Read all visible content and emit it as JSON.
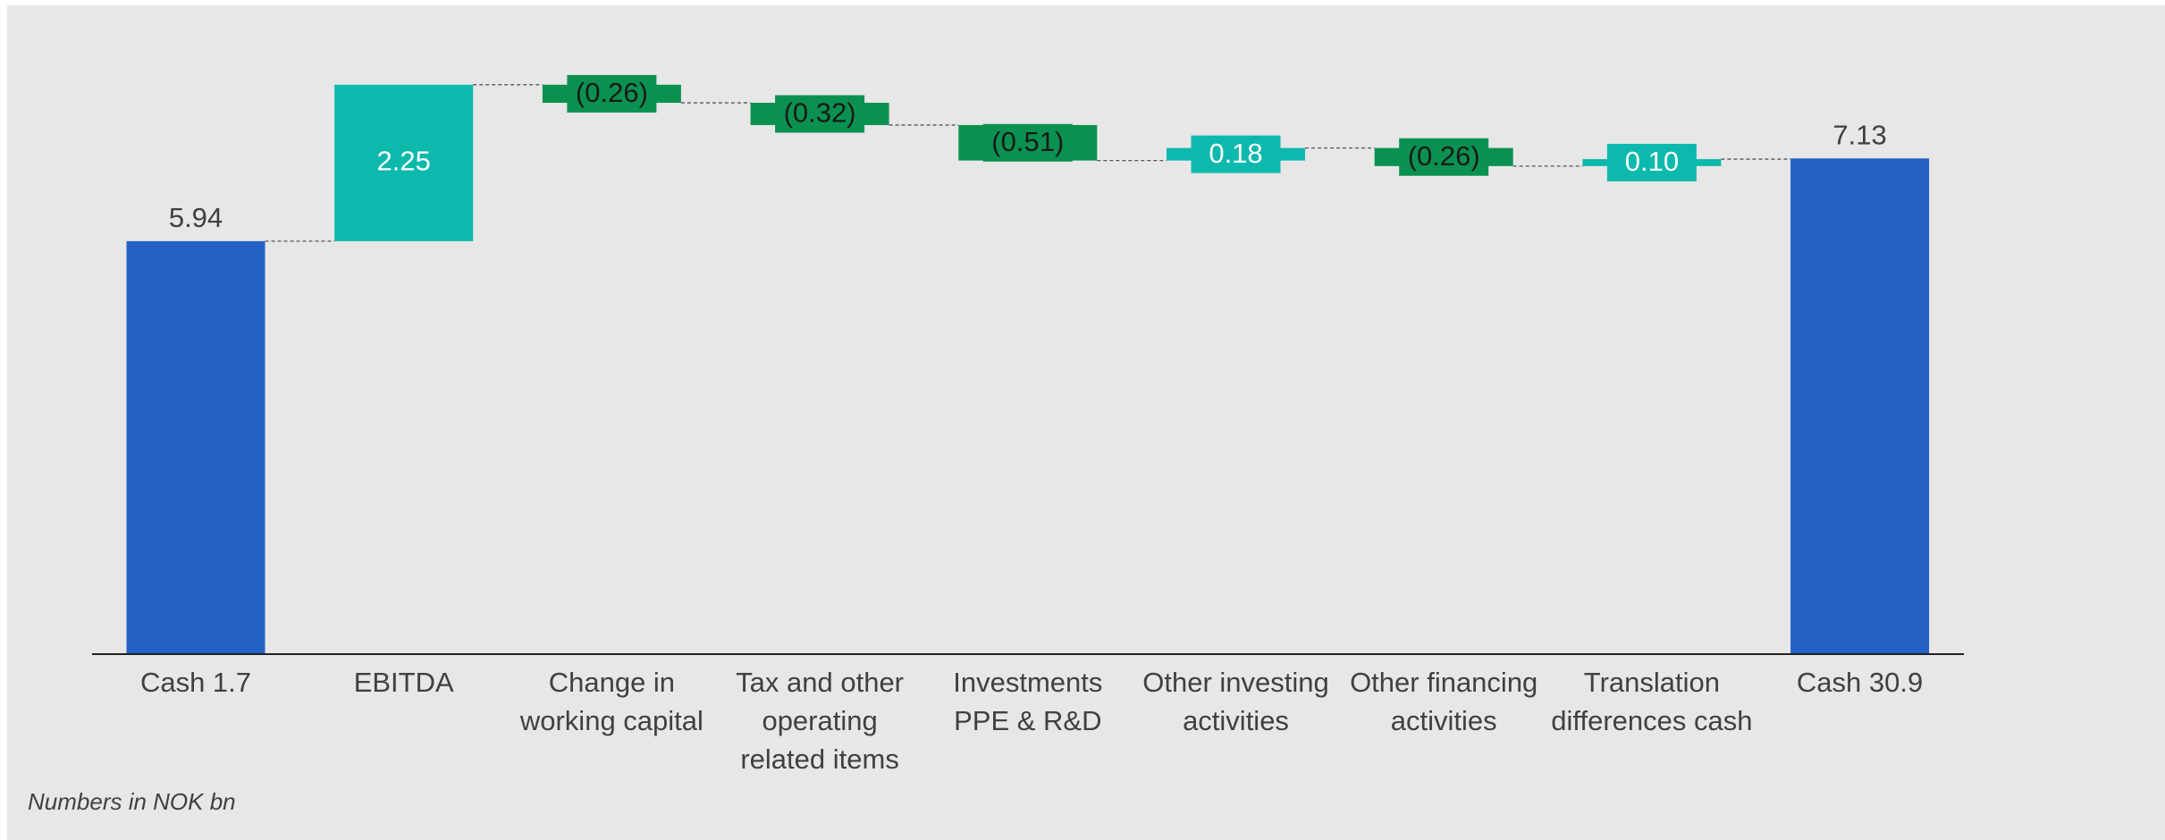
{
  "chart_data": {
    "type": "waterfall",
    "categories": [
      "Cash 1.7",
      "EBITDA",
      "Change in working capital",
      "Tax and other operating related items",
      "Investments PPE & R&D",
      "Other investing activities",
      "Other financing activities",
      "Translation differences cash",
      "Cash 30.9"
    ],
    "values": [
      5.94,
      2.25,
      -0.26,
      -0.32,
      -0.51,
      0.18,
      -0.26,
      0.1,
      7.13
    ],
    "value_labels": [
      "5.94",
      "2.25",
      "(0.26)",
      "(0.32)",
      "(0.51)",
      "0.18",
      "(0.26)",
      "0.10",
      "7.13"
    ],
    "measure": [
      "total",
      "relative",
      "relative",
      "relative",
      "relative",
      "relative",
      "relative",
      "relative",
      "total"
    ],
    "colors": {
      "total": "#2361c4",
      "increase": "#0cb9ac",
      "decrease": "#0a9150"
    },
    "note": "Numbers in NOK bn"
  }
}
